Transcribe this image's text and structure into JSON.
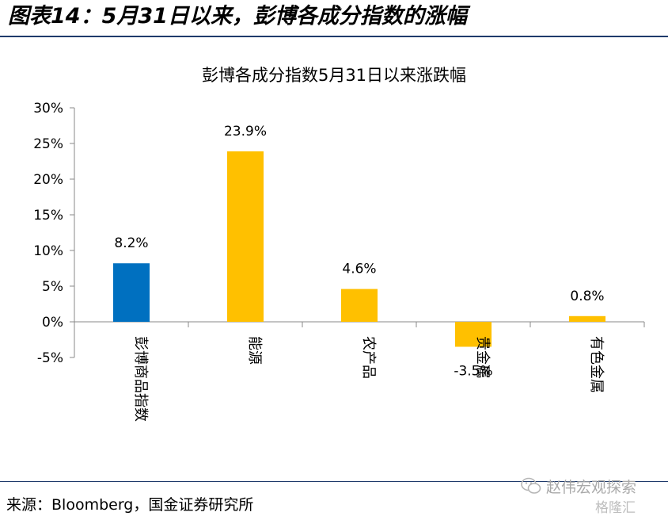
{
  "figure": {
    "title": "图表14：5月31日以来，彭博各成分指数的涨幅",
    "source": "来源：Bloomberg，国金证券研究所"
  },
  "watermark": {
    "line1": "赵伟宏观探索",
    "line2": "格隆汇",
    "icon": "wechat-icon"
  },
  "chart_data": {
    "type": "bar",
    "title": "彭博各成分指数5月31日以来涨跌幅",
    "categories": [
      "彭博商品指数",
      "能源",
      "农产品",
      "贵金属",
      "有色金属"
    ],
    "values": [
      8.2,
      23.9,
      4.6,
      -3.5,
      0.8
    ],
    "value_labels": [
      "8.2%",
      "23.9%",
      "4.6%",
      "-3.5%",
      "0.8%"
    ],
    "colors": [
      "#0070C0",
      "#FFC000",
      "#FFC000",
      "#FFC000",
      "#FFC000"
    ],
    "ylim": [
      -5,
      30
    ],
    "yticks": [
      30,
      25,
      20,
      15,
      10,
      5,
      0,
      -5
    ],
    "ytick_labels": [
      "30%",
      "25%",
      "20%",
      "15%",
      "10%",
      "5%",
      "0%",
      "-5%"
    ],
    "xlabel": "",
    "ylabel": "",
    "grid": false,
    "legend": "none"
  }
}
